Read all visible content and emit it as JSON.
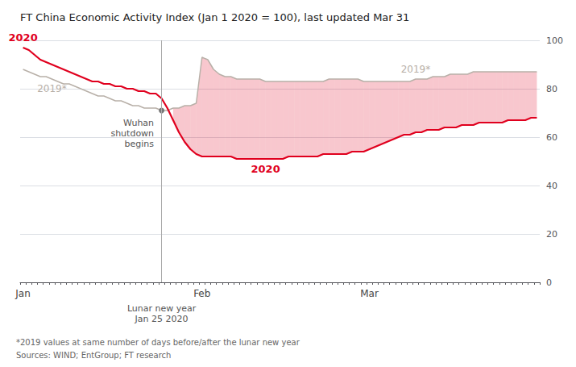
{
  "chart_data": {
    "type": "line",
    "title": "FT China Economic Activity Index (Jan 1 2020 = 100), last updated Mar 31",
    "categories": [
      "Jan",
      null,
      null,
      null,
      null,
      null,
      null,
      null,
      null,
      null,
      null,
      null,
      null,
      null,
      null,
      null,
      null,
      null,
      null,
      null,
      null,
      null,
      null,
      null,
      null,
      null,
      null,
      null,
      null,
      null,
      null,
      "Feb",
      null,
      null,
      null,
      null,
      null,
      null,
      null,
      null,
      null,
      null,
      null,
      null,
      null,
      null,
      null,
      null,
      null,
      null,
      null,
      null,
      null,
      null,
      null,
      null,
      null,
      null,
      null,
      null,
      "Mar",
      null,
      null,
      null,
      null,
      null,
      null,
      null,
      null,
      null,
      null,
      null,
      null,
      null,
      null,
      null,
      null,
      null,
      null,
      null,
      null,
      null,
      null,
      null,
      null,
      null,
      null,
      null,
      null,
      null
    ],
    "series": [
      {
        "name": "2020",
        "color": "#e0001e",
        "values": [
          97,
          96,
          94,
          92,
          91,
          90,
          89,
          88,
          87,
          86,
          85,
          84,
          83,
          83,
          82,
          82,
          81,
          81,
          80,
          80,
          79,
          79,
          78,
          78,
          76,
          72,
          67,
          62,
          58,
          55,
          53,
          52,
          52,
          52,
          52,
          52,
          52,
          51,
          51,
          51,
          51,
          51,
          51,
          51,
          51,
          51,
          52,
          52,
          52,
          52,
          52,
          52,
          53,
          53,
          53,
          53,
          53,
          54,
          54,
          54,
          55,
          56,
          57,
          58,
          59,
          60,
          61,
          61,
          62,
          62,
          63,
          63,
          63,
          64,
          64,
          64,
          65,
          65,
          65,
          66,
          66,
          66,
          66,
          66,
          67,
          67,
          67,
          67,
          68,
          68
        ]
      },
      {
        "name": "2019*",
        "color": "#b8b0a8",
        "values": [
          88,
          87,
          86,
          85,
          85,
          84,
          83,
          82,
          82,
          81,
          80,
          79,
          78,
          77,
          77,
          76,
          75,
          75,
          74,
          73,
          73,
          72,
          72,
          72,
          71,
          71,
          72,
          72,
          73,
          73,
          74,
          93,
          92,
          88,
          86,
          85,
          85,
          84,
          84,
          84,
          84,
          84,
          83,
          83,
          83,
          83,
          83,
          83,
          83,
          83,
          83,
          83,
          83,
          84,
          84,
          84,
          84,
          84,
          84,
          83,
          83,
          83,
          83,
          83,
          83,
          83,
          83,
          83,
          84,
          84,
          84,
          85,
          85,
          85,
          86,
          86,
          86,
          86,
          87,
          87,
          87,
          87,
          87,
          87,
          87,
          87,
          87,
          87,
          87,
          87
        ]
      }
    ],
    "ylim": [
      0,
      100
    ],
    "yticks": [
      0,
      20,
      40,
      60,
      80,
      100
    ],
    "grid": true,
    "annotations": [
      {
        "text": "Wuhan\nshutdown\nbegins",
        "x": 24
      },
      {
        "text": "Lunar new year\nJan 25 2020",
        "x": 24
      }
    ],
    "footnotes": [
      "*2019 values at same number of days before/after the lunar new year",
      "Sources: WIND; EntGroup; FT research"
    ]
  }
}
